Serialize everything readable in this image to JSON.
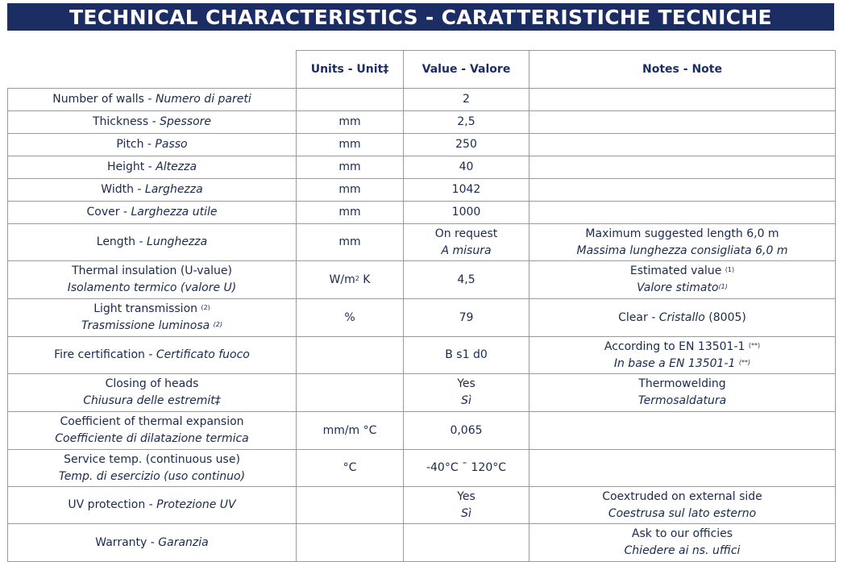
{
  "title": "TECHNICAL CHARACTERISTICS - CARATTERISTICHE TECNICHE",
  "headers": {
    "units": "Units - Unit‡",
    "value": "Value - Valore",
    "notes": "Notes - Note"
  },
  "rows": [
    {
      "name_en": "Number of walls",
      "sep": " - ",
      "name_it": "Numero di pareti",
      "unit": "",
      "value": "2"
    },
    {
      "name_en": "Thickness",
      "sep": " - ",
      "name_it": "Spessore",
      "unit": "mm",
      "value": "2,5"
    },
    {
      "name_en": "Pitch",
      "sep": " - ",
      "name_it": "Passo",
      "unit": "mm",
      "value": "250"
    },
    {
      "name_en": "Height",
      "sep": " - ",
      "name_it": "Altezza",
      "unit": "mm",
      "value": "40"
    },
    {
      "name_en": "Width",
      "sep": " - ",
      "name_it": "Larghezza",
      "unit": "mm",
      "value": "1042"
    },
    {
      "name_en": "Cover",
      "sep": " - ",
      "name_it": "Larghezza utile",
      "unit": "mm",
      "value": "1000"
    },
    {
      "name_en": "Length",
      "sep": " - ",
      "name_it": "Lunghezza",
      "unit": "mm",
      "value_en": "On request",
      "value_it": "A misura",
      "note_en": "Maximum suggested length 6,0 m",
      "note_it": "Massima lunghezza consigliata 6,0 m"
    },
    {
      "name_en": "Thermal insulation (U-value)",
      "name_it": "Isolamento termico (valore U)",
      "unit_base": "W/m",
      "unit_sup": "2",
      "unit_rest": " K",
      "value": "4,5",
      "note_en": "Estimated value ",
      "note_en_sup": "(1)",
      "note_it": "Valore stimato",
      "note_it_sup": "(1)"
    },
    {
      "name_en": "Light transmission ",
      "name_en_sup": "(2)",
      "name_it": "Trasmissione luminosa ",
      "name_it_sup": "(2)",
      "unit": "%",
      "value": "79",
      "note_pre": "Clear - ",
      "note_it": "Cristallo",
      "note_post": " (8005)"
    },
    {
      "name_en": "Fire certification",
      "sep": " - ",
      "name_it": "Certificato fuoco",
      "unit": "",
      "value": "B s1 d0",
      "note_en": "According to EN 13501-1 ",
      "note_en_sup": "(**)",
      "note_it": "In base a EN 13501-1 ",
      "note_it_sup": "(**)"
    },
    {
      "name_en": "Closing of heads",
      "name_it": "Chiusura delle estremit‡",
      "value_en": "Yes",
      "value_it": "Sì",
      "note_en": "Thermowelding",
      "note_it": "Termosaldatura"
    },
    {
      "name_en": "Coefficient of thermal expansion",
      "name_it": "Coefficiente di dilatazione termica",
      "unit": "mm/m °C",
      "value": "0,065"
    },
    {
      "name_en": "Service temp. (continuous use)",
      "name_it": "Temp. di esercizio (uso continuo)",
      "unit": "°C",
      "value": "-40°C ˉ 120°C"
    },
    {
      "name_en": "UV protection",
      "sep": " - ",
      "name_it": "Protezione UV",
      "value_en": "Yes",
      "value_it": "Sì",
      "note_en": "Coextruded on external side",
      "note_it": "Coestrusa sul lato esterno"
    },
    {
      "name_en": "Warranty",
      "sep": " - ",
      "name_it": "Garanzia",
      "note_en": "Ask to our officies",
      "note_it": "Chiedere ai ns. uffici"
    }
  ]
}
